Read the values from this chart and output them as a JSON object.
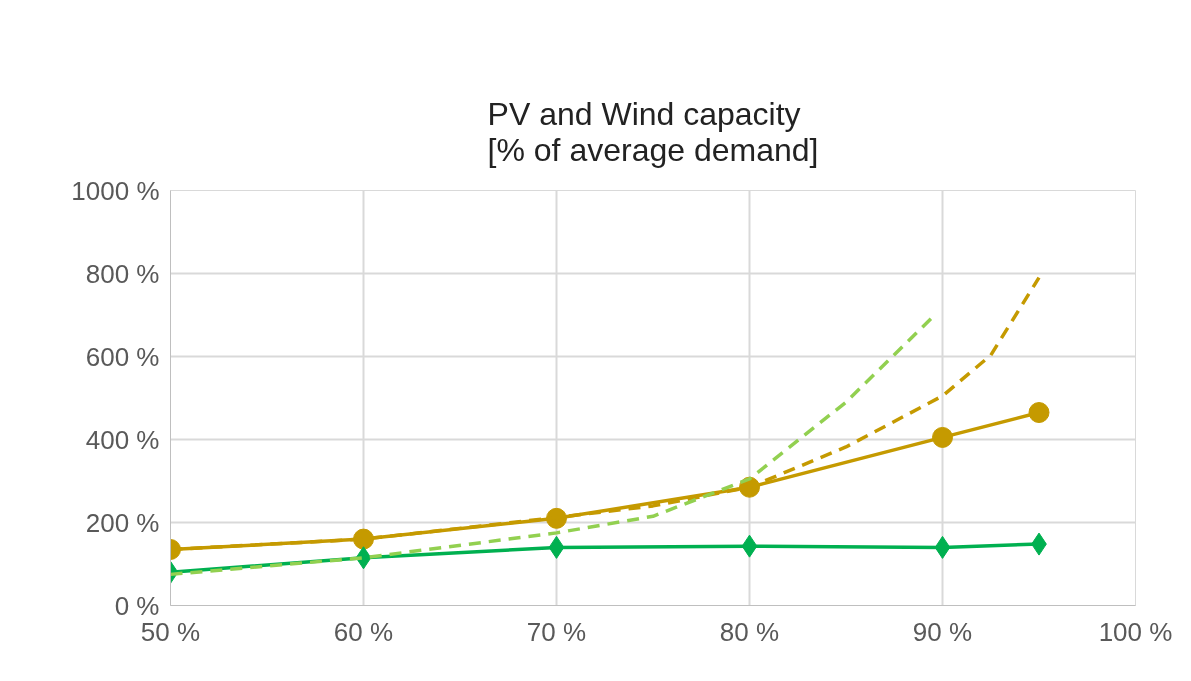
{
  "chart_data": {
    "type": "line",
    "title": "PV and Wind capacity\n[% of average demand]",
    "xlim": [
      50,
      100
    ],
    "ylim": [
      0,
      1000
    ],
    "xticks": [
      {
        "value": 50,
        "label": "50 %"
      },
      {
        "value": 60,
        "label": "60 %"
      },
      {
        "value": 70,
        "label": "70 %"
      },
      {
        "value": 80,
        "label": "80 %"
      },
      {
        "value": 90,
        "label": "90 %"
      },
      {
        "value": 100,
        "label": "100 %"
      }
    ],
    "yticks": [
      {
        "value": 0,
        "label": "0 %"
      },
      {
        "value": 200,
        "label": "200 %"
      },
      {
        "value": 400,
        "label": "400 %"
      },
      {
        "value": 600,
        "label": "600 %"
      },
      {
        "value": 800,
        "label": "800 %"
      },
      {
        "value": 1000,
        "label": "1000 %"
      }
    ],
    "grid": true,
    "series": [
      {
        "color": "#c59a00",
        "x": [
          50,
          60,
          70,
          80,
          90,
          95
        ],
        "values": [
          135,
          160,
          210,
          285,
          405,
          465
        ],
        "marker": "circle",
        "line_style": "solid"
      },
      {
        "color": "#00b050",
        "x": [
          50,
          60,
          70,
          80,
          90,
          95
        ],
        "values": [
          80,
          115,
          140,
          143,
          140,
          148
        ],
        "marker": "diamond",
        "line_style": "solid"
      },
      {
        "color": "#c59a00",
        "x": [
          50,
          60,
          70,
          75,
          80,
          85,
          90,
          92.5,
          95
        ],
        "values": [
          135,
          160,
          212,
          240,
          285,
          382,
          505,
          603,
          790
        ],
        "marker": "none",
        "line_style": "dashed"
      },
      {
        "color": "#92d050",
        "x": [
          50,
          60,
          70,
          75,
          80,
          85,
          89.6
        ],
        "values": [
          75,
          115,
          175,
          215,
          305,
          490,
          700
        ],
        "marker": "none",
        "line_style": "dashed"
      }
    ]
  }
}
